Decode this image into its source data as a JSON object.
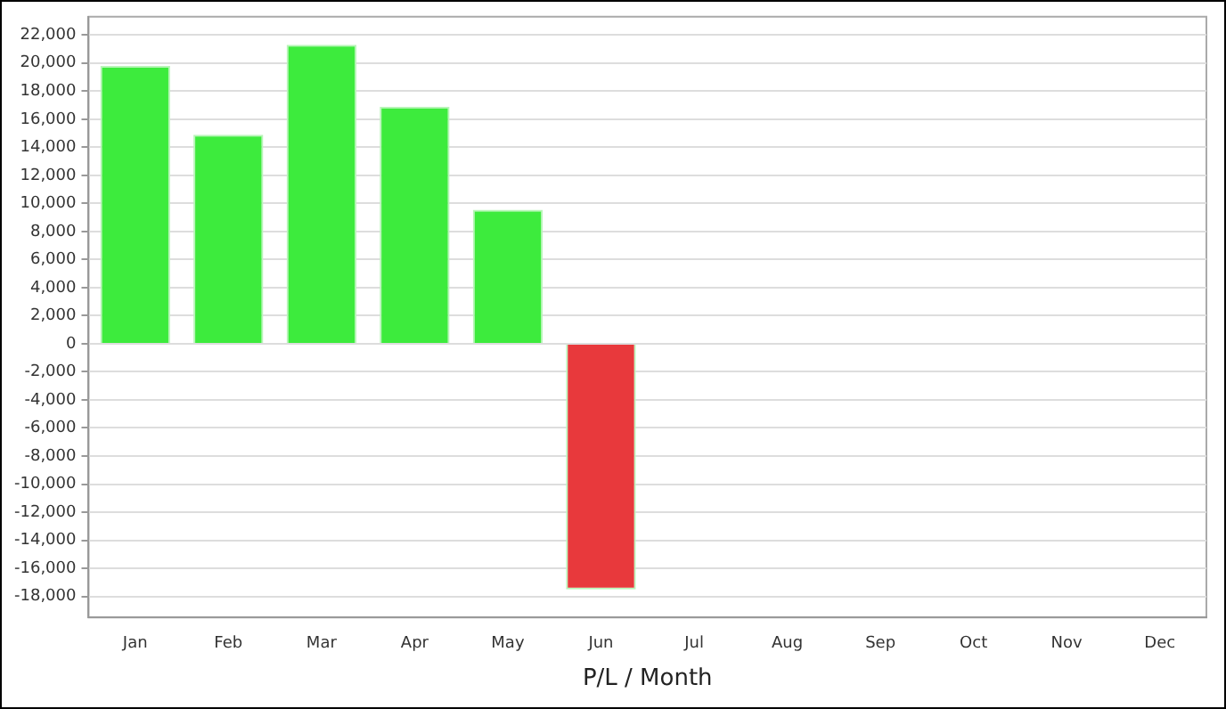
{
  "chart_data": {
    "type": "bar",
    "xlabel": "P/L / Month",
    "categories": [
      "Jan",
      "Feb",
      "Mar",
      "Apr",
      "May",
      "Jun",
      "Jul",
      "Aug",
      "Sep",
      "Oct",
      "Nov",
      "Dec"
    ],
    "values": [
      19800,
      14900,
      21300,
      16900,
      9550,
      -17500,
      null,
      null,
      null,
      null,
      null,
      null
    ],
    "colors": [
      "#3deb3d",
      "#3deb3d",
      "#3deb3d",
      "#3deb3d",
      "#3deb3d",
      "#e8393c",
      "#3deb3d",
      "#3deb3d",
      "#3deb3d",
      "#3deb3d",
      "#3deb3d",
      "#3deb3d"
    ],
    "ylim": [
      -19500,
      23300
    ],
    "yticks": [
      {
        "value": -18000,
        "label": "-18,000"
      },
      {
        "value": -16000,
        "label": "-16,000"
      },
      {
        "value": -14000,
        "label": "-14,000"
      },
      {
        "value": -12000,
        "label": "-12,000"
      },
      {
        "value": -10000,
        "label": "-10,000"
      },
      {
        "value": -8000,
        "label": "-8,000"
      },
      {
        "value": -6000,
        "label": "-6,000"
      },
      {
        "value": -4000,
        "label": "-4,000"
      },
      {
        "value": -2000,
        "label": "-2,000"
      },
      0,
      {
        "value": 2000,
        "label": "2,000"
      },
      {
        "value": 4000,
        "label": "4,000"
      },
      {
        "value": 6000,
        "label": "6,000"
      },
      {
        "value": 8000,
        "label": "8,000"
      },
      {
        "value": 10000,
        "label": "10,000"
      },
      {
        "value": 12000,
        "label": "12,000"
      },
      {
        "value": 14000,
        "label": "14,000"
      },
      {
        "value": 16000,
        "label": "16,000"
      },
      {
        "value": 18000,
        "label": "18,000"
      },
      {
        "value": 20000,
        "label": "20,000"
      },
      {
        "value": 22000,
        "label": "22,000"
      }
    ],
    "grid": "y",
    "legend": false
  }
}
